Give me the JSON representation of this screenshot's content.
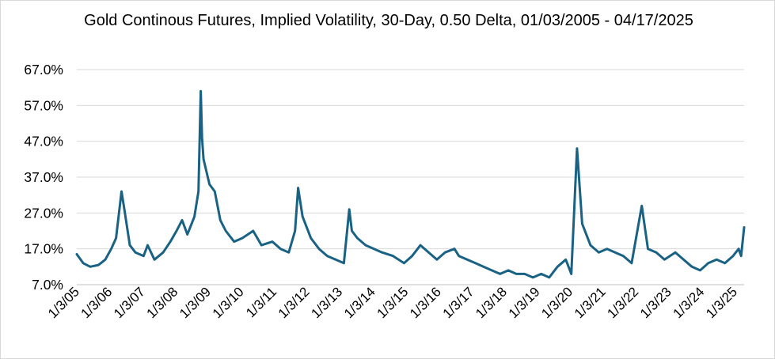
{
  "chart_data": {
    "type": "line",
    "title": "Gold Continous Futures, Implied Volatility, 30-Day, 0.50 Delta, 01/03/2005 - 04/17/2025",
    "xlabel": "",
    "ylabel": "",
    "ylim": [
      7,
      67
    ],
    "yticks": [
      "67.0%",
      "57.0%",
      "47.0%",
      "37.0%",
      "27.0%",
      "17.0%",
      "7.0%"
    ],
    "ytick_values": [
      67,
      57,
      47,
      37,
      27,
      17,
      7
    ],
    "xticks": [
      "1/3/05",
      "1/3/06",
      "1/3/07",
      "1/3/08",
      "1/3/09",
      "1/3/10",
      "1/3/11",
      "1/3/12",
      "1/3/13",
      "1/3/14",
      "1/3/15",
      "1/3/16",
      "1/3/17",
      "1/3/18",
      "1/3/19",
      "1/3/20",
      "1/3/21",
      "1/3/22",
      "1/3/23",
      "1/3/24",
      "1/3/25"
    ],
    "xtick_years": [
      2005,
      2006,
      2007,
      2008,
      2009,
      2010,
      2011,
      2012,
      2013,
      2014,
      2015,
      2016,
      2017,
      2018,
      2019,
      2020,
      2021,
      2022,
      2023,
      2024,
      2025
    ],
    "grid": true,
    "line_color": "#1a6283",
    "series": [
      {
        "x": [
          "2005-01-03",
          "2005-03-15",
          "2005-06-01",
          "2005-09-01",
          "2005-11-15",
          "2006-01-20",
          "2006-03-15",
          "2006-05-15",
          "2006-06-15",
          "2006-08-15",
          "2006-10-15",
          "2007-01-15",
          "2007-03-01",
          "2007-05-15",
          "2007-08-20",
          "2007-11-08",
          "2008-01-15",
          "2008-03-17",
          "2008-05-15",
          "2008-08-01",
          "2008-09-15",
          "2008-10-10",
          "2008-10-24",
          "2008-11-10",
          "2009-01-15",
          "2009-03-15",
          "2009-05-15",
          "2009-07-15",
          "2009-10-15",
          "2010-01-15",
          "2010-05-15",
          "2010-08-15",
          "2010-12-15",
          "2011-03-15",
          "2011-06-15",
          "2011-08-23",
          "2011-09-26",
          "2011-11-15",
          "2012-02-15",
          "2012-05-15",
          "2012-08-15",
          "2012-11-15",
          "2013-02-15",
          "2013-04-16",
          "2013-05-15",
          "2013-07-15",
          "2013-10-15",
          "2014-01-15",
          "2014-04-15",
          "2014-08-15",
          "2014-12-15",
          "2015-03-15",
          "2015-06-15",
          "2015-09-15",
          "2015-12-15",
          "2016-03-15",
          "2016-06-27",
          "2016-08-15",
          "2016-11-15",
          "2017-02-15",
          "2017-05-15",
          "2017-08-15",
          "2017-11-15",
          "2018-02-15",
          "2018-05-15",
          "2018-08-15",
          "2018-11-15",
          "2019-02-15",
          "2019-05-15",
          "2019-08-15",
          "2019-11-15",
          "2020-01-15",
          "2020-03-19",
          "2020-05-15",
          "2020-08-15",
          "2020-11-15",
          "2021-02-15",
          "2021-05-15",
          "2021-08-15",
          "2021-11-15",
          "2022-03-08",
          "2022-05-15",
          "2022-08-15",
          "2022-11-15",
          "2023-03-15",
          "2023-06-15",
          "2023-09-15",
          "2023-12-15",
          "2024-03-15",
          "2024-06-15",
          "2024-09-15",
          "2024-12-15",
          "2025-02-15",
          "2025-03-15",
          "2025-04-17"
        ],
        "values": [
          15.5,
          13,
          12,
          12.5,
          14,
          17,
          20,
          33,
          28,
          18,
          16,
          15,
          18,
          14,
          16,
          19,
          22,
          25,
          21,
          26,
          33,
          61,
          48,
          42,
          35,
          33,
          25,
          22,
          19,
          20,
          22,
          18,
          19,
          17,
          16,
          22,
          34,
          26,
          20,
          17,
          15,
          14,
          13,
          28,
          22,
          20,
          18,
          17,
          16,
          15,
          13,
          15,
          18,
          16,
          14,
          16,
          17,
          15,
          14,
          13,
          12,
          11,
          10,
          11,
          10,
          10,
          9,
          10,
          9,
          12,
          14,
          10,
          45,
          24,
          18,
          16,
          17,
          16,
          15,
          13,
          29,
          17,
          16,
          14,
          16,
          14,
          12,
          11,
          13,
          14,
          13,
          15,
          17,
          15,
          23
        ]
      }
    ]
  }
}
